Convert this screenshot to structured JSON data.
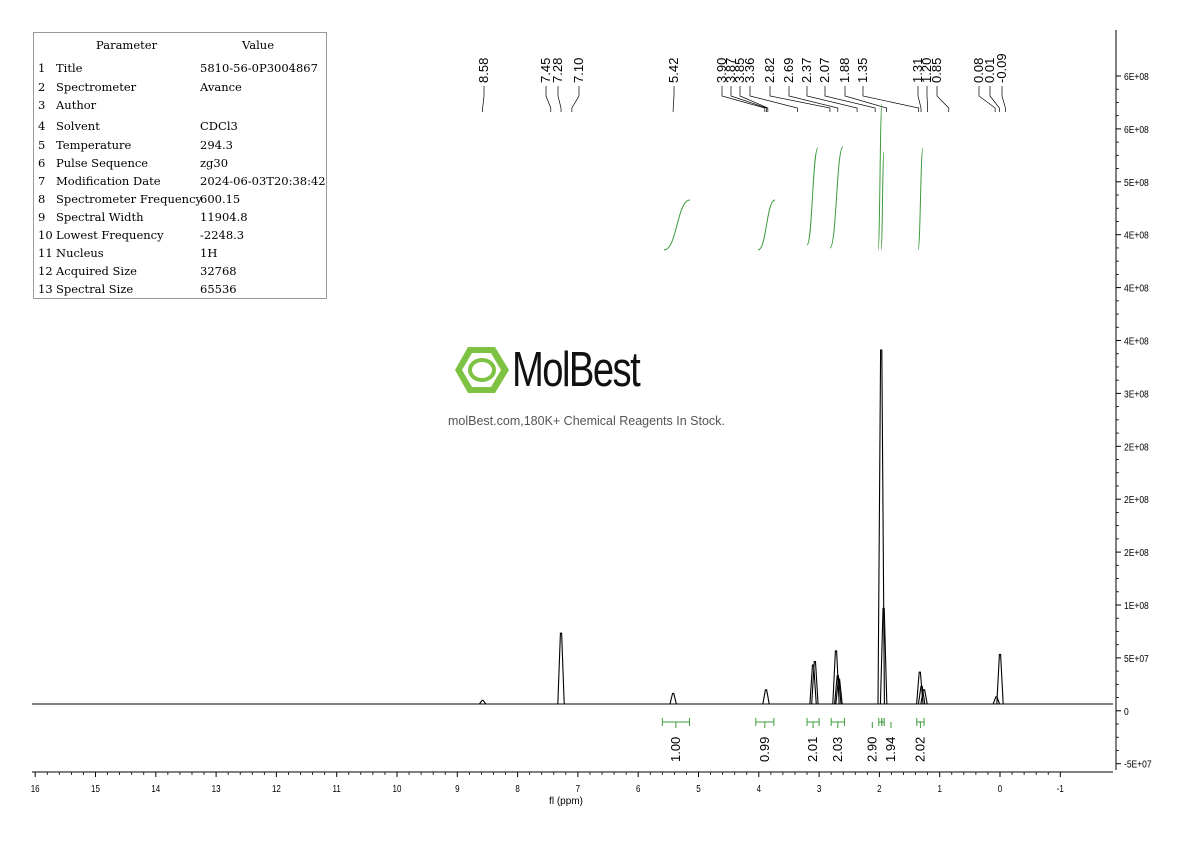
{
  "params": {
    "header_param": "Parameter",
    "header_value": "Value",
    "rows": [
      {
        "idx": "1",
        "name": "Title",
        "value": "5810-56-0P3004867"
      },
      {
        "idx": "2",
        "name": "Spectrometer",
        "value": "Avance"
      },
      {
        "idx": "3",
        "name": "Author",
        "value": ""
      },
      {
        "idx": "4",
        "name": "Solvent",
        "value": "CDCl3"
      },
      {
        "idx": "5",
        "name": "Temperature",
        "value": "294.3"
      },
      {
        "idx": "6",
        "name": "Pulse Sequence",
        "value": "zg30"
      },
      {
        "idx": "7",
        "name": "Modification Date",
        "value": "2024-06-03T20:38:42"
      },
      {
        "idx": "8",
        "name": "Spectrometer Frequency",
        "value": "600.15"
      },
      {
        "idx": "9",
        "name": "Spectral Width",
        "value": "11904.8"
      },
      {
        "idx": "10",
        "name": "Lowest Frequency",
        "value": "-2248.3"
      },
      {
        "idx": "11",
        "name": "Nucleus",
        "value": "1H"
      },
      {
        "idx": "12",
        "name": "Acquired Size",
        "value": "32768"
      },
      {
        "idx": "13",
        "name": "Spectral Size",
        "value": "65536"
      }
    ]
  },
  "logo": {
    "name": "MolBest",
    "tagline": "molBest.com,180K+ Chemical Reagents In Stock.",
    "color": "#7dc242"
  },
  "chart_data": {
    "type": "line",
    "xlabel": "fl (ppm)",
    "x_range": [
      16.5,
      -2
    ],
    "x_ticks": [
      "16",
      "15",
      "14",
      "13",
      "12",
      "11",
      "10",
      "9",
      "8",
      "7",
      "6",
      "5",
      "4",
      "3",
      "2",
      "1",
      "0",
      "-1"
    ],
    "y_ticks": [
      "6E+08",
      "6E+08",
      "5E+08",
      "4E+08",
      "4E+08",
      "4E+08",
      "3E+08",
      "2E+08",
      "2E+08",
      "2E+08",
      "1E+08",
      "5E+07",
      "0",
      "-5E+07"
    ],
    "peak_labels": [
      "8.58",
      "7.45",
      "7.28",
      "7.10",
      "5.42",
      "3.90",
      "3.87",
      "3.85",
      "3.36",
      "2.82",
      "2.69",
      "2.37",
      "2.07",
      "1.88",
      "1.35",
      "1.31",
      "1.20",
      "0.85",
      "0.08",
      "0.01",
      "-0.09"
    ],
    "integrals": [
      {
        "from": 5.6,
        "to": 5.15,
        "value": "1.00"
      },
      {
        "from": 4.05,
        "to": 3.75,
        "value": "0.99"
      },
      {
        "from": 3.2,
        "to": 3.0,
        "value": "2.01"
      },
      {
        "from": 2.8,
        "to": 2.58,
        "value": "2.03"
      },
      {
        "from": 2.01,
        "to": 1.96,
        "value": "2.90"
      },
      {
        "from": 1.96,
        "to": 1.92,
        "value": "1.94"
      },
      {
        "from": 1.38,
        "to": 1.26,
        "value": "2.02"
      }
    ],
    "peaks": [
      {
        "ppm": 8.58,
        "height": 0.01
      },
      {
        "ppm": 7.28,
        "height": 0.2
      },
      {
        "ppm": 5.42,
        "height": 0.03
      },
      {
        "ppm": 3.88,
        "height": 0.04
      },
      {
        "ppm": 3.1,
        "height": 0.11
      },
      {
        "ppm": 3.07,
        "height": 0.12
      },
      {
        "ppm": 2.72,
        "height": 0.15
      },
      {
        "ppm": 2.69,
        "height": 0.08
      },
      {
        "ppm": 2.67,
        "height": 0.07
      },
      {
        "ppm": 1.97,
        "height": 1.0
      },
      {
        "ppm": 1.93,
        "height": 0.27
      },
      {
        "ppm": 1.33,
        "height": 0.09
      },
      {
        "ppm": 1.3,
        "height": 0.05
      },
      {
        "ppm": 1.26,
        "height": 0.04
      },
      {
        "ppm": 0.06,
        "height": 0.02
      },
      {
        "ppm": 0.0,
        "height": 0.14
      }
    ]
  }
}
